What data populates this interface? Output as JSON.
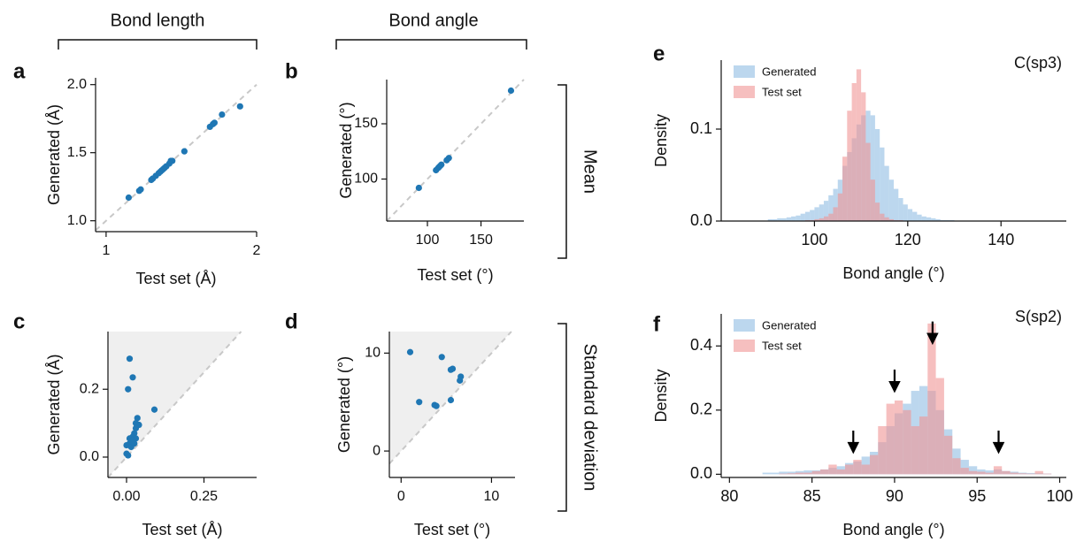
{
  "column_labels": [
    "Bond length",
    "Bond angle"
  ],
  "row_labels": [
    "Mean",
    "Standard deviation"
  ],
  "chart_data": [
    {
      "type": "scatter",
      "label": "a",
      "xlabel": "Test set (Å)",
      "ylabel": "Generated (Å)",
      "color": "#1f77b4",
      "identity_line": true,
      "shade_above": false,
      "x": [
        1.15,
        1.22,
        1.23,
        1.3,
        1.31,
        1.33,
        1.35,
        1.36,
        1.37,
        1.38,
        1.39,
        1.4,
        1.42,
        1.43,
        1.44,
        1.52,
        1.69,
        1.71,
        1.72,
        1.77,
        1.89
      ],
      "values": [
        1.17,
        1.22,
        1.23,
        1.3,
        1.31,
        1.33,
        1.35,
        1.36,
        1.37,
        1.38,
        1.39,
        1.4,
        1.42,
        1.44,
        1.44,
        1.51,
        1.69,
        1.71,
        1.72,
        1.78,
        1.84
      ],
      "xlim": [
        0.93,
        2.0
      ],
      "ylim": [
        0.92,
        2.05
      ],
      "xticks": [
        1,
        2
      ],
      "yticks": [
        {
          "value": 1,
          "label": "1.0"
        },
        1.5,
        {
          "value": 2,
          "label": "2.0"
        }
      ]
    },
    {
      "type": "scatter",
      "label": "b",
      "xlabel": "Test set (°)",
      "ylabel": "Generated (°)",
      "color": "#1f77b4",
      "identity_line": true,
      "shade_above": false,
      "x": [
        92,
        108,
        110,
        111,
        112,
        113,
        118,
        120,
        178
      ],
      "values": [
        92,
        108,
        110,
        111,
        112,
        113,
        117,
        119,
        180
      ],
      "xlim": [
        62,
        190
      ],
      "ylim": [
        62,
        190
      ],
      "xticks": [
        100,
        150
      ],
      "yticks": [
        100,
        150
      ]
    },
    {
      "type": "scatter",
      "label": "c",
      "xlabel": "Test set (Å)",
      "ylabel": "Generated (Å)",
      "color": "#1f77b4",
      "identity_line": true,
      "shade_above": true,
      "x": [
        0.01,
        0.02,
        0.005,
        0.09,
        0.035,
        0.03,
        0.04,
        0.03,
        0.025,
        0.02,
        0.01,
        0.03,
        0.02,
        0.0,
        0.01,
        0.015,
        0.025,
        0.0,
        0.005,
        0.02
      ],
      "values": [
        0.29,
        0.235,
        0.2,
        0.14,
        0.115,
        0.1,
        0.095,
        0.085,
        0.07,
        0.06,
        0.055,
        0.055,
        0.05,
        0.035,
        0.04,
        0.03,
        0.04,
        0.01,
        0.005,
        0.045
      ],
      "xlim": [
        -0.06,
        0.42
      ],
      "ylim": [
        -0.06,
        0.37
      ],
      "xticks": [
        {
          "value": 0,
          "label": "0.00"
        },
        0.25
      ],
      "yticks": [
        {
          "value": 0,
          "label": "0.0"
        },
        0.2
      ]
    },
    {
      "type": "scatter",
      "label": "d",
      "xlabel": "Test set (°)",
      "ylabel": "Generated (°)",
      "color": "#1f77b4",
      "identity_line": true,
      "shade_above": true,
      "x": [
        1,
        4.5,
        5.5,
        5.7,
        6.6,
        6.5,
        2,
        3.7,
        3.9,
        5.5
      ],
      "values": [
        10.1,
        9.6,
        8.3,
        8.4,
        7.6,
        7.2,
        5,
        4.7,
        4.6,
        5.2
      ],
      "xlim": [
        -1.3,
        12.6
      ],
      "ylim": [
        -2.7,
        12.2
      ],
      "xticks": [
        0,
        10
      ],
      "yticks": [
        0,
        10
      ]
    },
    {
      "type": "histogram",
      "label": "e",
      "annotation": "C(sp3)",
      "xlabel": "Bond angle (°)",
      "ylabel": "Density",
      "legend": "upper left",
      "bins": [
        90,
        91,
        92,
        93,
        94,
        95,
        96,
        97,
        98,
        99,
        100,
        101,
        102,
        103,
        104,
        105,
        106,
        107,
        108,
        109,
        110,
        111,
        112,
        113,
        114,
        115,
        116,
        117,
        118,
        119,
        120,
        121,
        122,
        123,
        124,
        125,
        126,
        127,
        128,
        129,
        130
      ],
      "series": [
        {
          "name": "Generated",
          "color": "#8fbde3",
          "values": [
            0.002,
            0.002,
            0.003,
            0.003,
            0.004,
            0.005,
            0.006,
            0.008,
            0.01,
            0.012,
            0.015,
            0.018,
            0.022,
            0.028,
            0.035,
            0.045,
            0.06,
            0.075,
            0.09,
            0.105,
            0.115,
            0.12,
            0.115,
            0.1,
            0.08,
            0.06,
            0.045,
            0.035,
            0.025,
            0.018,
            0.013,
            0.01,
            0.007,
            0.005,
            0.004,
            0.003,
            0.002,
            0.001,
            0.001,
            0.001
          ]
        },
        {
          "name": "Test set",
          "color": "#f09494",
          "values": [
            0,
            0,
            0,
            0,
            0,
            0,
            0,
            0,
            0.001,
            0.001,
            0.002,
            0.003,
            0.005,
            0.008,
            0.015,
            0.03,
            0.07,
            0.12,
            0.15,
            0.165,
            0.14,
            0.085,
            0.045,
            0.02,
            0.008,
            0.004,
            0.002,
            0.001,
            0.001,
            0,
            0,
            0,
            0,
            0,
            0,
            0,
            0,
            0,
            0,
            0
          ]
        }
      ],
      "xlim": [
        80,
        154
      ],
      "ylim": [
        0,
        0.175
      ],
      "xticks": [
        100,
        120,
        140
      ],
      "yticks": [
        {
          "value": 0,
          "label": "0.0"
        },
        0.1
      ]
    },
    {
      "type": "histogram",
      "label": "f",
      "annotation": "S(sp2)",
      "xlabel": "Bond angle (°)",
      "ylabel": "Density",
      "legend": "upper left",
      "bins": [
        82,
        82.5,
        83,
        83.5,
        84,
        84.5,
        85,
        85.5,
        86,
        86.5,
        87,
        87.5,
        88,
        88.5,
        89,
        89.5,
        90,
        90.5,
        91,
        91.5,
        92,
        92.5,
        93,
        93.5,
        94,
        94.5,
        95,
        95.5,
        96,
        96.5,
        97,
        97.5,
        98,
        98.5,
        99,
        99.5
      ],
      "series": [
        {
          "name": "Generated",
          "color": "#8fbde3",
          "values": [
            0.005,
            0.005,
            0.008,
            0.008,
            0.01,
            0.012,
            0.012,
            0.015,
            0.02,
            0.025,
            0.035,
            0.04,
            0.055,
            0.07,
            0.1,
            0.15,
            0.19,
            0.22,
            0.26,
            0.275,
            0.26,
            0.2,
            0.14,
            0.08,
            0.045,
            0.025,
            0.015,
            0.012,
            0.015,
            0.01,
            0.008,
            0.005,
            0.004,
            0.003,
            0.002
          ]
        },
        {
          "name": "Test set",
          "color": "#f09494",
          "values": [
            0,
            0,
            0.002,
            0.003,
            0.005,
            0.005,
            0.01,
            0.015,
            0.03,
            0.015,
            0.03,
            0.045,
            0.03,
            0.06,
            0.15,
            0.22,
            0.23,
            0.2,
            0.15,
            0.18,
            0.47,
            0.3,
            0.12,
            0.05,
            0.02,
            0.01,
            0.008,
            0.005,
            0.025,
            0.01,
            0.005,
            0.003,
            0.002,
            0.01,
            0.002
          ]
        }
      ],
      "arrows": [
        {
          "x": 87.5,
          "y": 0.07
        },
        {
          "x": 90,
          "y": 0.26
        },
        {
          "x": 92.3,
          "y": 0.41
        },
        {
          "x": 96.3,
          "y": 0.07
        }
      ],
      "xlim": [
        79.5,
        100.4
      ],
      "ylim": [
        -0.01,
        0.5
      ],
      "xticks": [
        80,
        85,
        90,
        95,
        100
      ],
      "yticks": [
        {
          "value": 0,
          "label": "0.0"
        },
        0.2,
        0.4
      ]
    }
  ]
}
